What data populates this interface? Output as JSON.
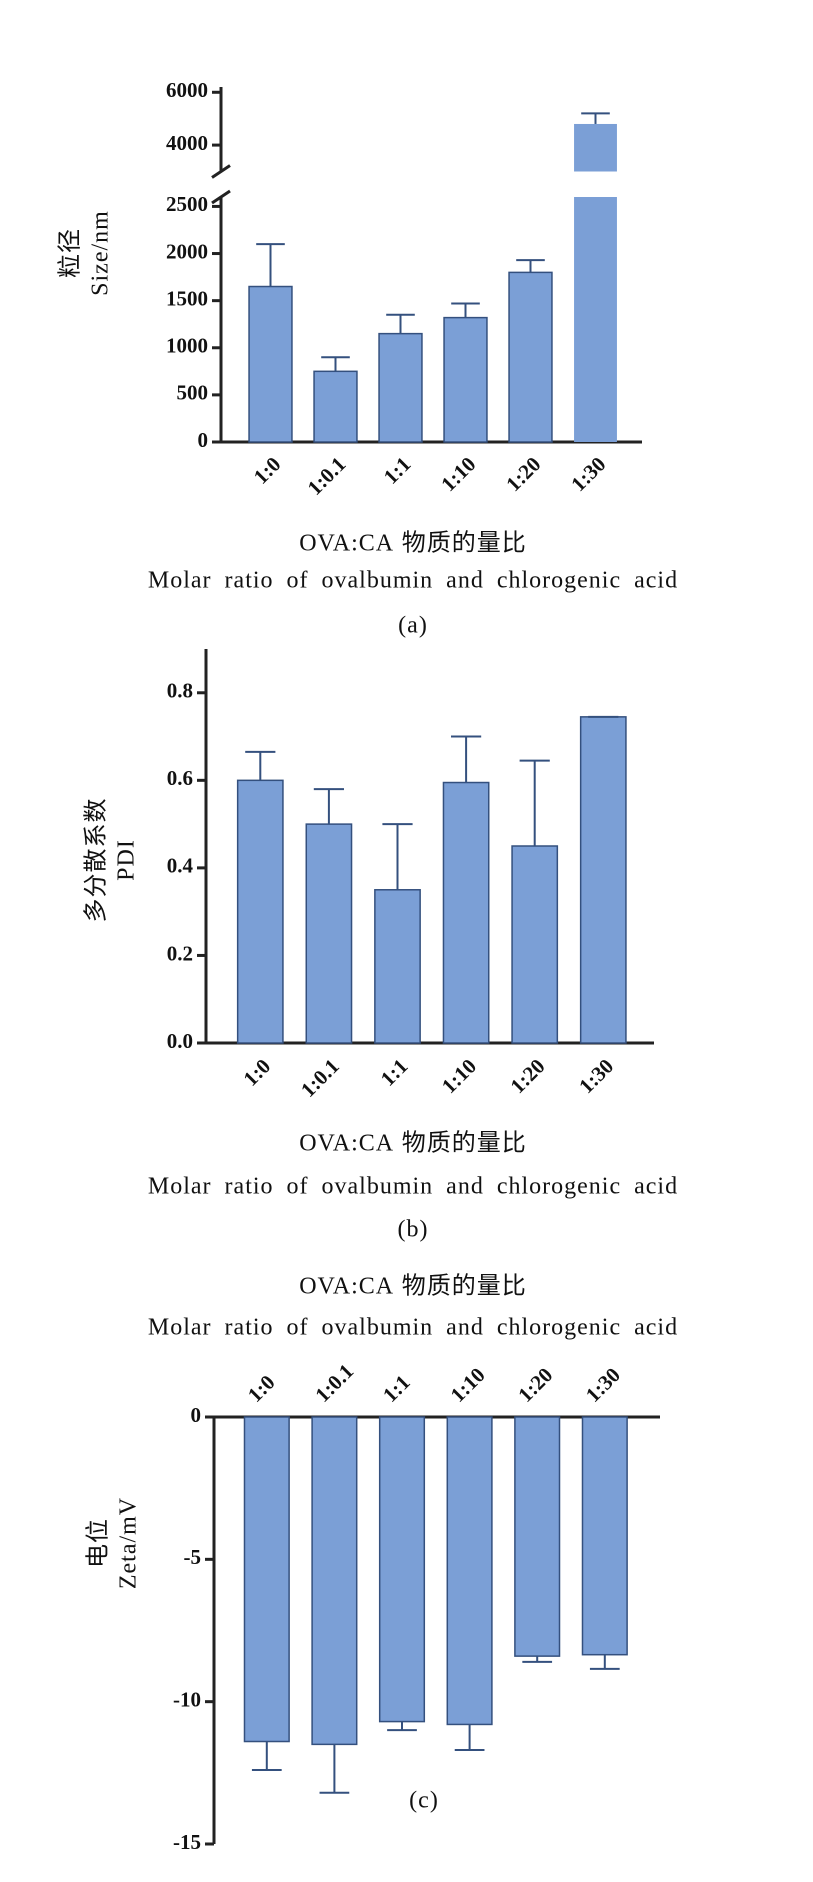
{
  "chart_data": [
    {
      "type": "bar",
      "ylabel": [
        "粒径",
        "Size/nm"
      ],
      "xlabel": [
        "OVA:CA 物质的量比",
        "Molar ratio of ovalbumin and chlorogenic acid"
      ],
      "caption": "(a)",
      "categories": [
        "1:0",
        "1:0.1",
        "1:1",
        "1:10",
        "1:20",
        "1:30"
      ],
      "values": [
        1650,
        750,
        1150,
        1320,
        1800,
        4800
      ],
      "errors": [
        450,
        150,
        200,
        150,
        130,
        400
      ],
      "color": "#7b9fd6",
      "ylim": [
        0,
        6200
      ],
      "y_break": [
        2600,
        3000
      ],
      "yticks": [
        0,
        500,
        1000,
        1500,
        2000,
        2500,
        4000,
        6000
      ]
    },
    {
      "type": "bar",
      "ylabel": [
        "多分散系数",
        "PDI"
      ],
      "xlabel": [
        "OVA:CA 物质的量比",
        "Molar ratio of ovalbumin and chlorogenic acid"
      ],
      "caption": "(b)",
      "categories": [
        "1:0",
        "1:0.1",
        "1:1",
        "1:10",
        "1:20",
        "1:30"
      ],
      "values": [
        0.6,
        0.5,
        0.35,
        0.595,
        0.45,
        0.745
      ],
      "errors": [
        0.065,
        0.08,
        0.15,
        0.105,
        0.195,
        0
      ],
      "color": "#7b9fd6",
      "ylim": [
        0,
        0.9
      ],
      "yticks": [
        {
          "value": 0,
          "label": "0.0"
        },
        0.2,
        0.4,
        0.6,
        0.8
      ]
    },
    {
      "type": "bar",
      "ylabel": [
        "电位",
        "Zeta/mV"
      ],
      "xlabel": [
        "OVA:CA 物质的量比",
        "Molar ratio of ovalbumin and chlorogenic acid"
      ],
      "caption": "(c)",
      "categories": [
        "1:0",
        "1:0.1",
        "1:1",
        "1:10",
        "1:20",
        "1:30"
      ],
      "values": [
        -11.4,
        -11.5,
        -10.7,
        -10.8,
        -8.4,
        -8.35
      ],
      "errors": [
        1.0,
        1.7,
        0.3,
        0.9,
        0.2,
        0.5
      ],
      "color": "#7b9fd6",
      "ylim": [
        -15,
        0
      ],
      "yticks": [
        -15,
        -10,
        -5,
        0
      ]
    }
  ]
}
